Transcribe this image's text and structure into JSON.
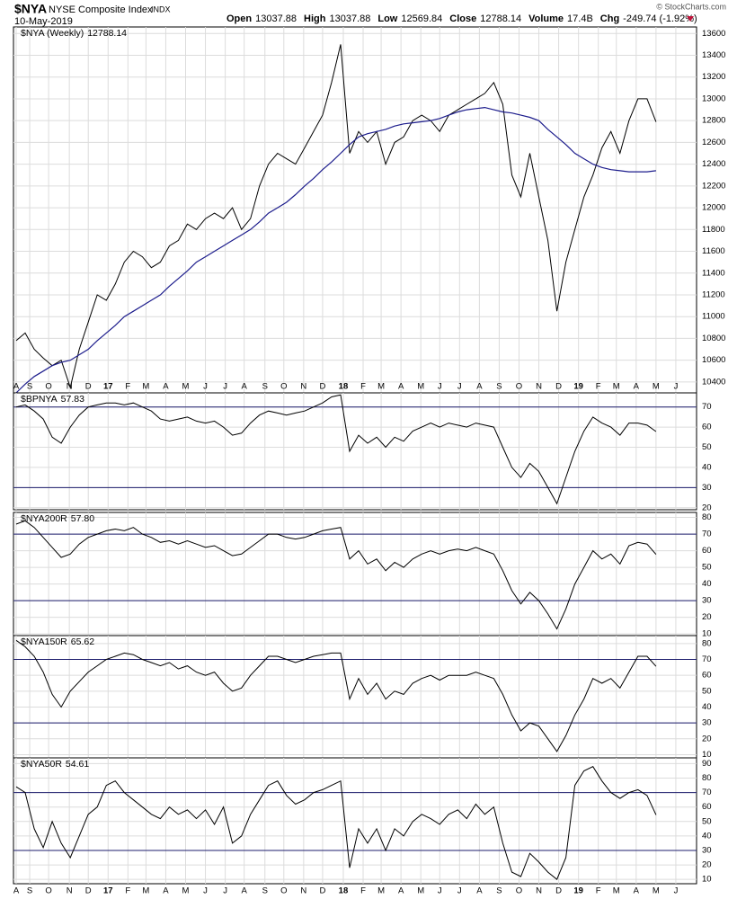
{
  "header": {
    "symbol": "$NYA",
    "name": "NYSE Composite Index",
    "exchange": "INDX",
    "date": "10-May-2019",
    "copyright": "© StockCharts.com",
    "stats": [
      {
        "label": "Open",
        "value": "13037.88"
      },
      {
        "label": "High",
        "value": "13037.88"
      },
      {
        "label": "Low",
        "value": "12569.84"
      },
      {
        "label": "Close",
        "value": "12788.14"
      },
      {
        "label": "Volume",
        "value": "17.4B"
      },
      {
        "label": "Chg",
        "value": "-249.74 (-1.92%)"
      }
    ]
  },
  "x_axis": {
    "xlim": [
      -0.3,
      75.5
    ],
    "xticks": [
      {
        "value": 0,
        "label": "A"
      },
      {
        "value": 1.5,
        "label": "S"
      },
      {
        "value": 3.6,
        "label": "O"
      },
      {
        "value": 5.9,
        "label": "N"
      },
      {
        "value": 8,
        "label": "D"
      },
      {
        "value": 10.2,
        "label": "17"
      },
      {
        "value": 12.4,
        "label": "F"
      },
      {
        "value": 14.4,
        "label": "M"
      },
      {
        "value": 16.6,
        "label": "A"
      },
      {
        "value": 18.8,
        "label": "M"
      },
      {
        "value": 21,
        "label": "J"
      },
      {
        "value": 23.2,
        "label": "J"
      },
      {
        "value": 25.3,
        "label": "A"
      },
      {
        "value": 27.6,
        "label": "S"
      },
      {
        "value": 29.7,
        "label": "O"
      },
      {
        "value": 31.9,
        "label": "N"
      },
      {
        "value": 34,
        "label": "D"
      },
      {
        "value": 36.3,
        "label": "18"
      },
      {
        "value": 38.5,
        "label": "F"
      },
      {
        "value": 40.5,
        "label": "M"
      },
      {
        "value": 42.7,
        "label": "A"
      },
      {
        "value": 44.9,
        "label": "M"
      },
      {
        "value": 47,
        "label": "J"
      },
      {
        "value": 49.2,
        "label": "J"
      },
      {
        "value": 51.4,
        "label": "A"
      },
      {
        "value": 53.6,
        "label": "S"
      },
      {
        "value": 55.8,
        "label": "O"
      },
      {
        "value": 58,
        "label": "N"
      },
      {
        "value": 60.2,
        "label": "D"
      },
      {
        "value": 62.4,
        "label": "19"
      },
      {
        "value": 64.6,
        "label": "F"
      },
      {
        "value": 66.6,
        "label": "M"
      },
      {
        "value": 68.8,
        "label": "A"
      },
      {
        "value": 71,
        "label": "M"
      },
      {
        "value": 73.2,
        "label": "J"
      }
    ]
  },
  "chart_data": [
    {
      "type": "line",
      "name": "$NYA (Weekly)",
      "last_label": "12788.14",
      "grid": true,
      "ylim": [
        10300,
        13660
      ],
      "yticks": [
        10400,
        10600,
        10800,
        11000,
        11200,
        11400,
        11600,
        11800,
        12000,
        12200,
        12400,
        12600,
        12800,
        13000,
        13200,
        13400,
        13600
      ],
      "series": [
        {
          "color": "#000000",
          "values": [
            10780,
            10850,
            10700,
            10620,
            10550,
            10600,
            10350,
            10700,
            10950,
            11200,
            11150,
            11300,
            11500,
            11600,
            11550,
            11450,
            11500,
            11650,
            11700,
            11850,
            11800,
            11900,
            11950,
            11900,
            12000,
            11800,
            11900,
            12200,
            12400,
            12500,
            12450,
            12400,
            12550,
            12700,
            12850,
            13150,
            13500,
            12500,
            12700,
            12600,
            12700,
            12400,
            12600,
            12650,
            12800,
            12850,
            12800,
            12700,
            12850,
            12900,
            12950,
            13000,
            13050,
            13150,
            12950,
            12300,
            12100,
            12500,
            12100,
            11700,
            11050,
            11500,
            11800,
            12100,
            12300,
            12550,
            12700,
            12500,
            12800,
            13000,
            13000,
            12788.14
          ]
        },
        {
          "color": "#1c1c8c",
          "values": [
            10300,
            10380,
            10450,
            10500,
            10550,
            10580,
            10600,
            10650,
            10700,
            10780,
            10850,
            10920,
            11000,
            11050,
            11100,
            11150,
            11200,
            11280,
            11350,
            11420,
            11500,
            11550,
            11600,
            11650,
            11700,
            11750,
            11800,
            11870,
            11950,
            12000,
            12050,
            12120,
            12200,
            12270,
            12350,
            12420,
            12500,
            12580,
            12650,
            12680,
            12700,
            12720,
            12750,
            12770,
            12780,
            12790,
            12800,
            12820,
            12850,
            12880,
            12900,
            12910,
            12920,
            12900,
            12880,
            12870,
            12850,
            12830,
            12800,
            12720,
            12650,
            12580,
            12500,
            12450,
            12400,
            12370,
            12350,
            12340,
            12330,
            12330,
            12330,
            12340
          ]
        }
      ]
    },
    {
      "type": "line",
      "name": "$BPNYA",
      "last_label": "57.83",
      "grid": true,
      "ylim": [
        19,
        77
      ],
      "yticks": [
        20,
        30,
        40,
        50,
        60,
        70
      ],
      "hlines": [
        30,
        70
      ],
      "series": [
        {
          "color": "#000000",
          "values": [
            70,
            71,
            68,
            64,
            55,
            52,
            60,
            66,
            70,
            71,
            72,
            72,
            71,
            72,
            70,
            68,
            64,
            63,
            64,
            65,
            63,
            62,
            63,
            60,
            56,
            57,
            62,
            66,
            68,
            67,
            66,
            67,
            68,
            70,
            72,
            75,
            76,
            48,
            56,
            52,
            55,
            50,
            55,
            53,
            58,
            60,
            62,
            60,
            62,
            61,
            60,
            62,
            61,
            60,
            50,
            40,
            35,
            42,
            38,
            30,
            22,
            35,
            48,
            58,
            65,
            62,
            60,
            56,
            62,
            62,
            61,
            57.83
          ]
        }
      ]
    },
    {
      "type": "line",
      "name": "$NYA200R",
      "last_label": "57.80",
      "grid": true,
      "ylim": [
        9,
        83
      ],
      "yticks": [
        10,
        20,
        30,
        40,
        50,
        60,
        70,
        80
      ],
      "hlines": [
        30,
        70
      ],
      "series": [
        {
          "color": "#000000",
          "values": [
            76,
            78,
            74,
            68,
            62,
            56,
            58,
            64,
            68,
            70,
            72,
            73,
            72,
            74,
            70,
            68,
            65,
            66,
            64,
            66,
            64,
            62,
            63,
            60,
            57,
            58,
            62,
            66,
            70,
            70,
            68,
            67,
            68,
            70,
            72,
            73,
            74,
            55,
            60,
            52,
            55,
            48,
            53,
            50,
            55,
            58,
            60,
            58,
            60,
            61,
            60,
            62,
            60,
            58,
            48,
            36,
            28,
            35,
            30,
            22,
            13,
            25,
            40,
            50,
            60,
            55,
            58,
            52,
            63,
            65,
            64,
            57.8
          ]
        }
      ]
    },
    {
      "type": "line",
      "name": "$NYA150R",
      "last_label": "65.62",
      "grid": true,
      "ylim": [
        8,
        85
      ],
      "yticks": [
        10,
        20,
        30,
        40,
        50,
        60,
        70,
        80
      ],
      "hlines": [
        30,
        70
      ],
      "series": [
        {
          "color": "#000000",
          "values": [
            82,
            78,
            72,
            62,
            48,
            40,
            50,
            56,
            62,
            66,
            70,
            72,
            74,
            73,
            70,
            68,
            66,
            68,
            64,
            66,
            62,
            60,
            62,
            55,
            50,
            52,
            60,
            66,
            72,
            72,
            70,
            68,
            70,
            72,
            73,
            74,
            74,
            45,
            58,
            48,
            55,
            45,
            50,
            48,
            55,
            58,
            60,
            57,
            60,
            60,
            60,
            62,
            60,
            58,
            48,
            35,
            25,
            30,
            28,
            20,
            12,
            22,
            35,
            45,
            58,
            55,
            58,
            52,
            62,
            72,
            72,
            65.62
          ]
        }
      ]
    },
    {
      "type": "line",
      "name": "$NYA50R",
      "last_label": "54.61",
      "grid": true,
      "ylim": [
        7,
        94
      ],
      "yticks": [
        10,
        20,
        30,
        40,
        50,
        60,
        70,
        80,
        90
      ],
      "hlines": [
        30,
        70
      ],
      "series": [
        {
          "color": "#000000",
          "values": [
            74,
            70,
            45,
            32,
            50,
            35,
            25,
            40,
            55,
            60,
            75,
            78,
            70,
            65,
            60,
            55,
            52,
            60,
            55,
            58,
            52,
            58,
            48,
            60,
            35,
            40,
            55,
            65,
            75,
            78,
            68,
            62,
            65,
            70,
            72,
            75,
            78,
            18,
            45,
            35,
            45,
            30,
            45,
            40,
            50,
            55,
            52,
            48,
            55,
            58,
            52,
            62,
            55,
            60,
            35,
            15,
            12,
            28,
            22,
            15,
            10,
            25,
            75,
            85,
            88,
            78,
            70,
            66,
            70,
            72,
            68,
            54.61
          ]
        }
      ]
    }
  ]
}
